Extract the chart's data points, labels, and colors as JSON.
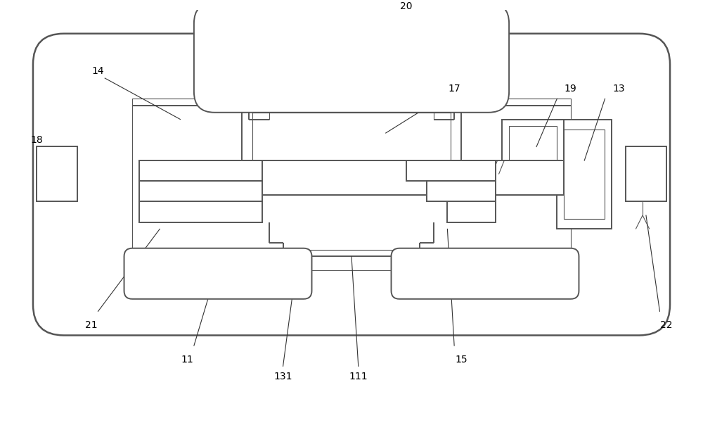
{
  "background_color": "#ffffff",
  "line_color": "#555555",
  "line_width": 1.4,
  "fig_width": 10.0,
  "fig_height": 6.01,
  "dpi": 100
}
